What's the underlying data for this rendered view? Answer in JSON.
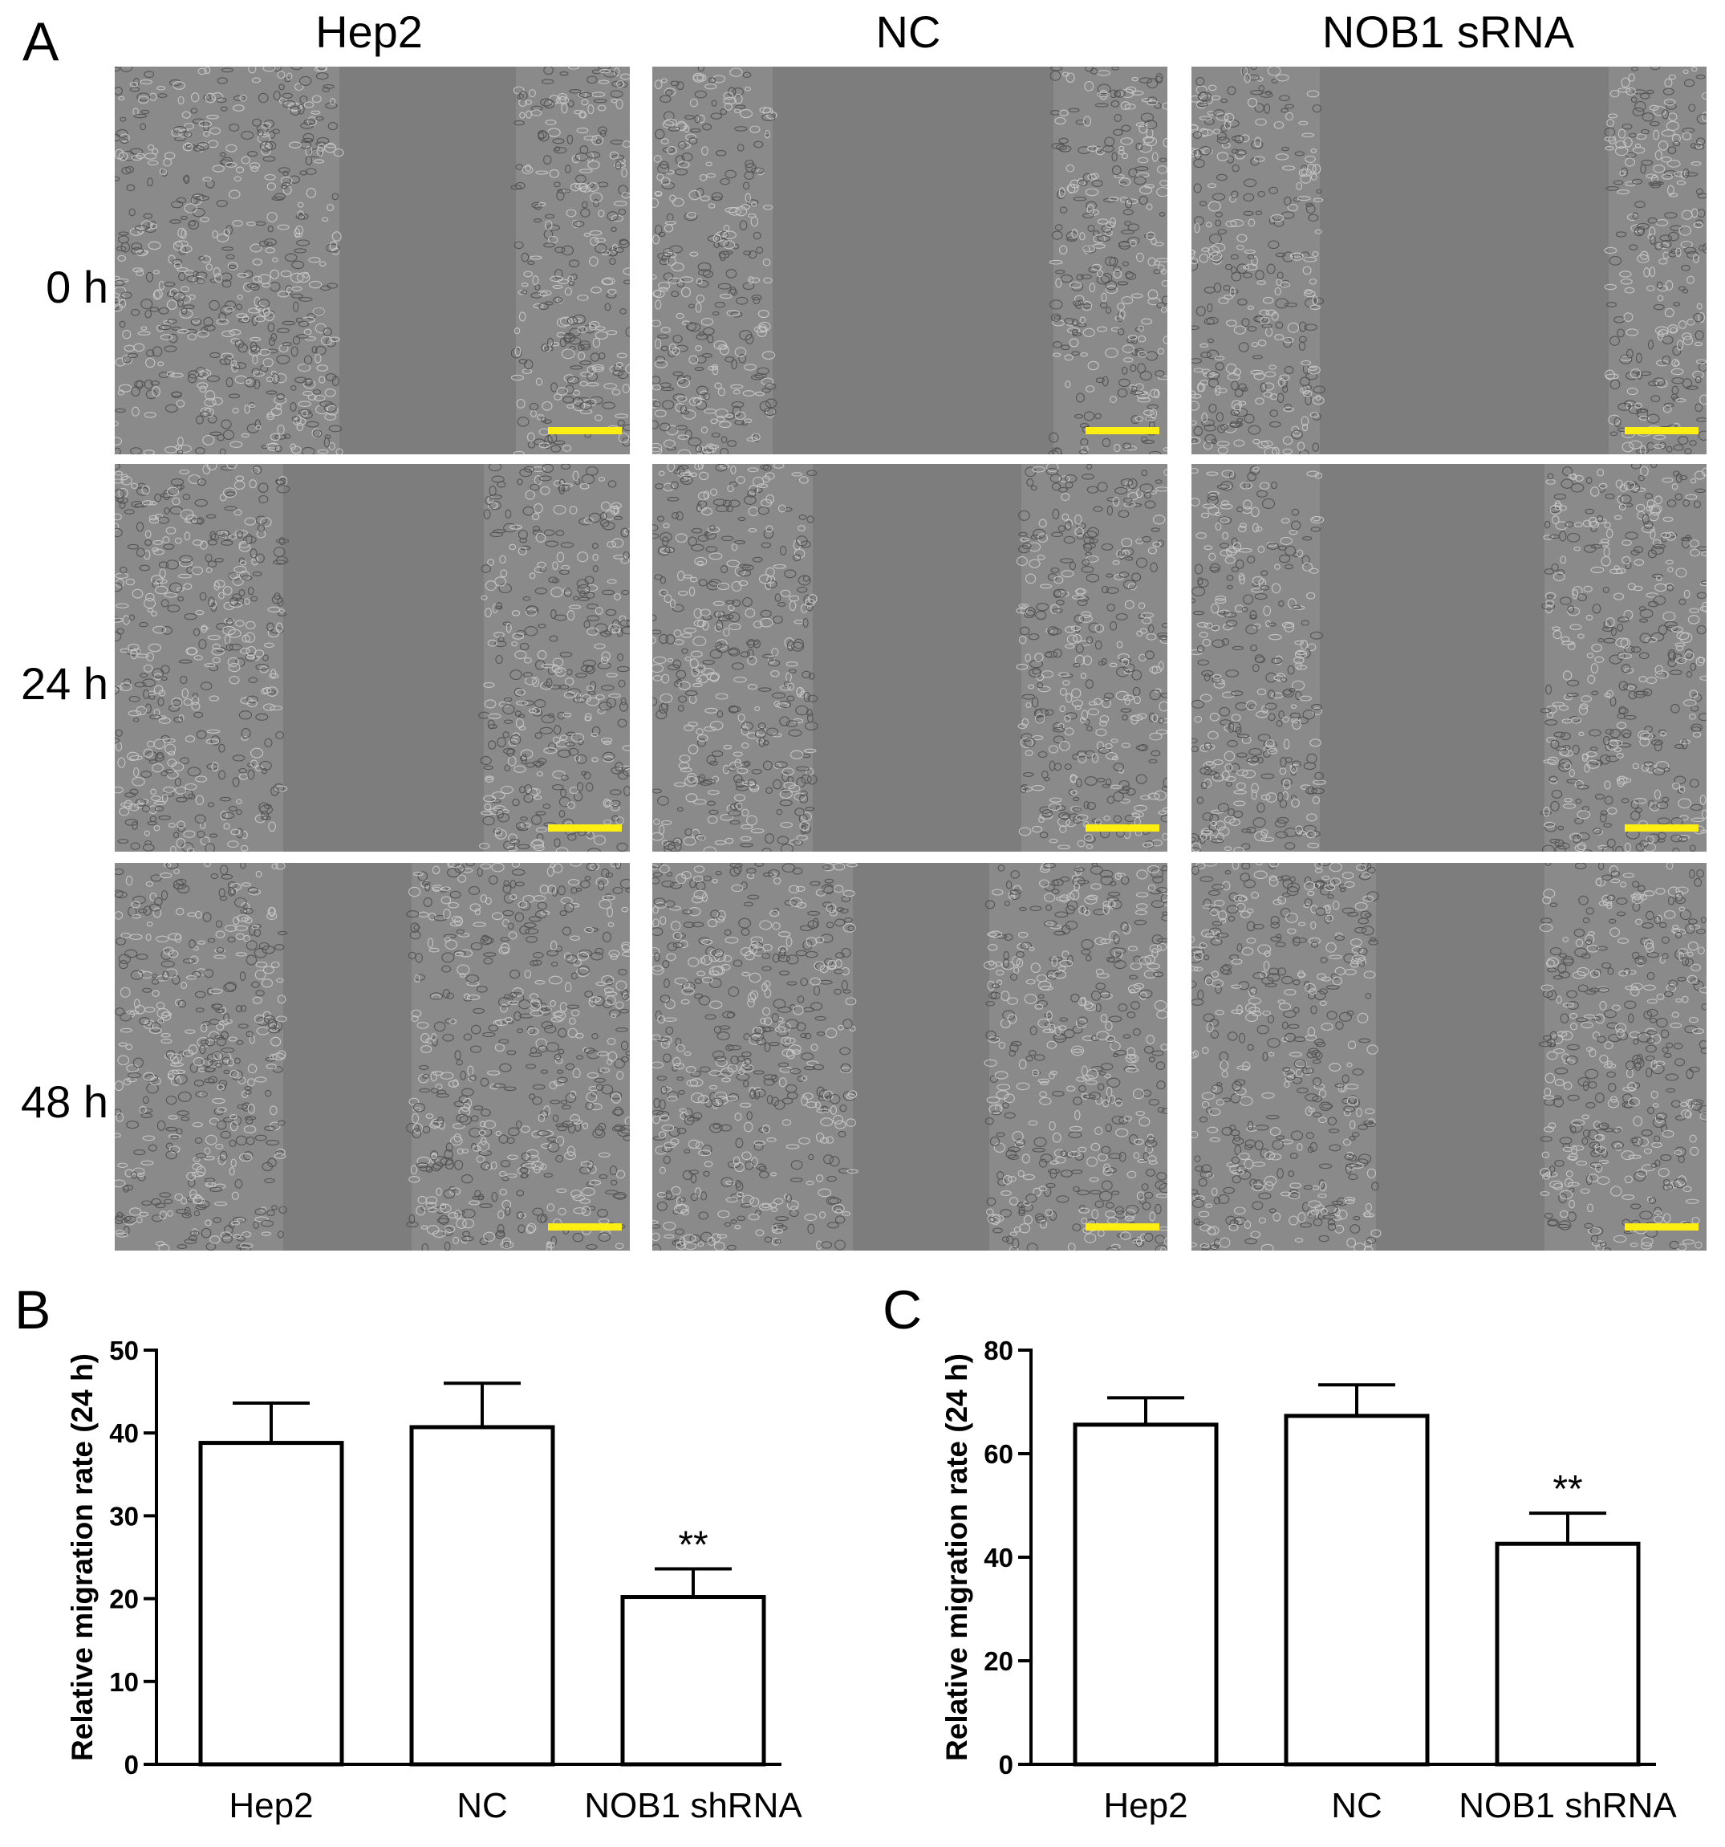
{
  "panel_a": {
    "letter": "A",
    "columns": [
      "Hep2",
      "NC",
      "NOB1 sRNA"
    ],
    "rows": [
      "0 h",
      "24 h",
      "48 h"
    ],
    "scalebar_color": "#ffee11"
  },
  "chart_data": [
    {
      "panel": "B",
      "type": "bar",
      "categories": [
        "Hep2",
        "NC",
        "NOB1 shRNA"
      ],
      "values": [
        38.8,
        40.7,
        20.2
      ],
      "errors": [
        4.8,
        5.3,
        3.4
      ],
      "significance": [
        "",
        "",
        "**"
      ],
      "ylabel": "Relative migration rate (24 h)",
      "ylim": [
        0,
        50
      ],
      "yticks": [
        0,
        10,
        20,
        30,
        40,
        50
      ],
      "grid": false,
      "bar_fill": "#ffffff",
      "bar_stroke": "#000000"
    },
    {
      "panel": "C",
      "type": "bar",
      "categories": [
        "Hep2",
        "NC",
        "NOB1 shRNA"
      ],
      "values": [
        65.6,
        67.3,
        42.6
      ],
      "errors": [
        5.2,
        6.0,
        5.9
      ],
      "significance": [
        "",
        "",
        "**"
      ],
      "ylabel": "Relative migration rate (24 h)",
      "ylim": [
        0,
        80
      ],
      "yticks": [
        0,
        20,
        40,
        60,
        80
      ],
      "grid": false,
      "bar_fill": "#ffffff",
      "bar_stroke": "#000000"
    }
  ]
}
